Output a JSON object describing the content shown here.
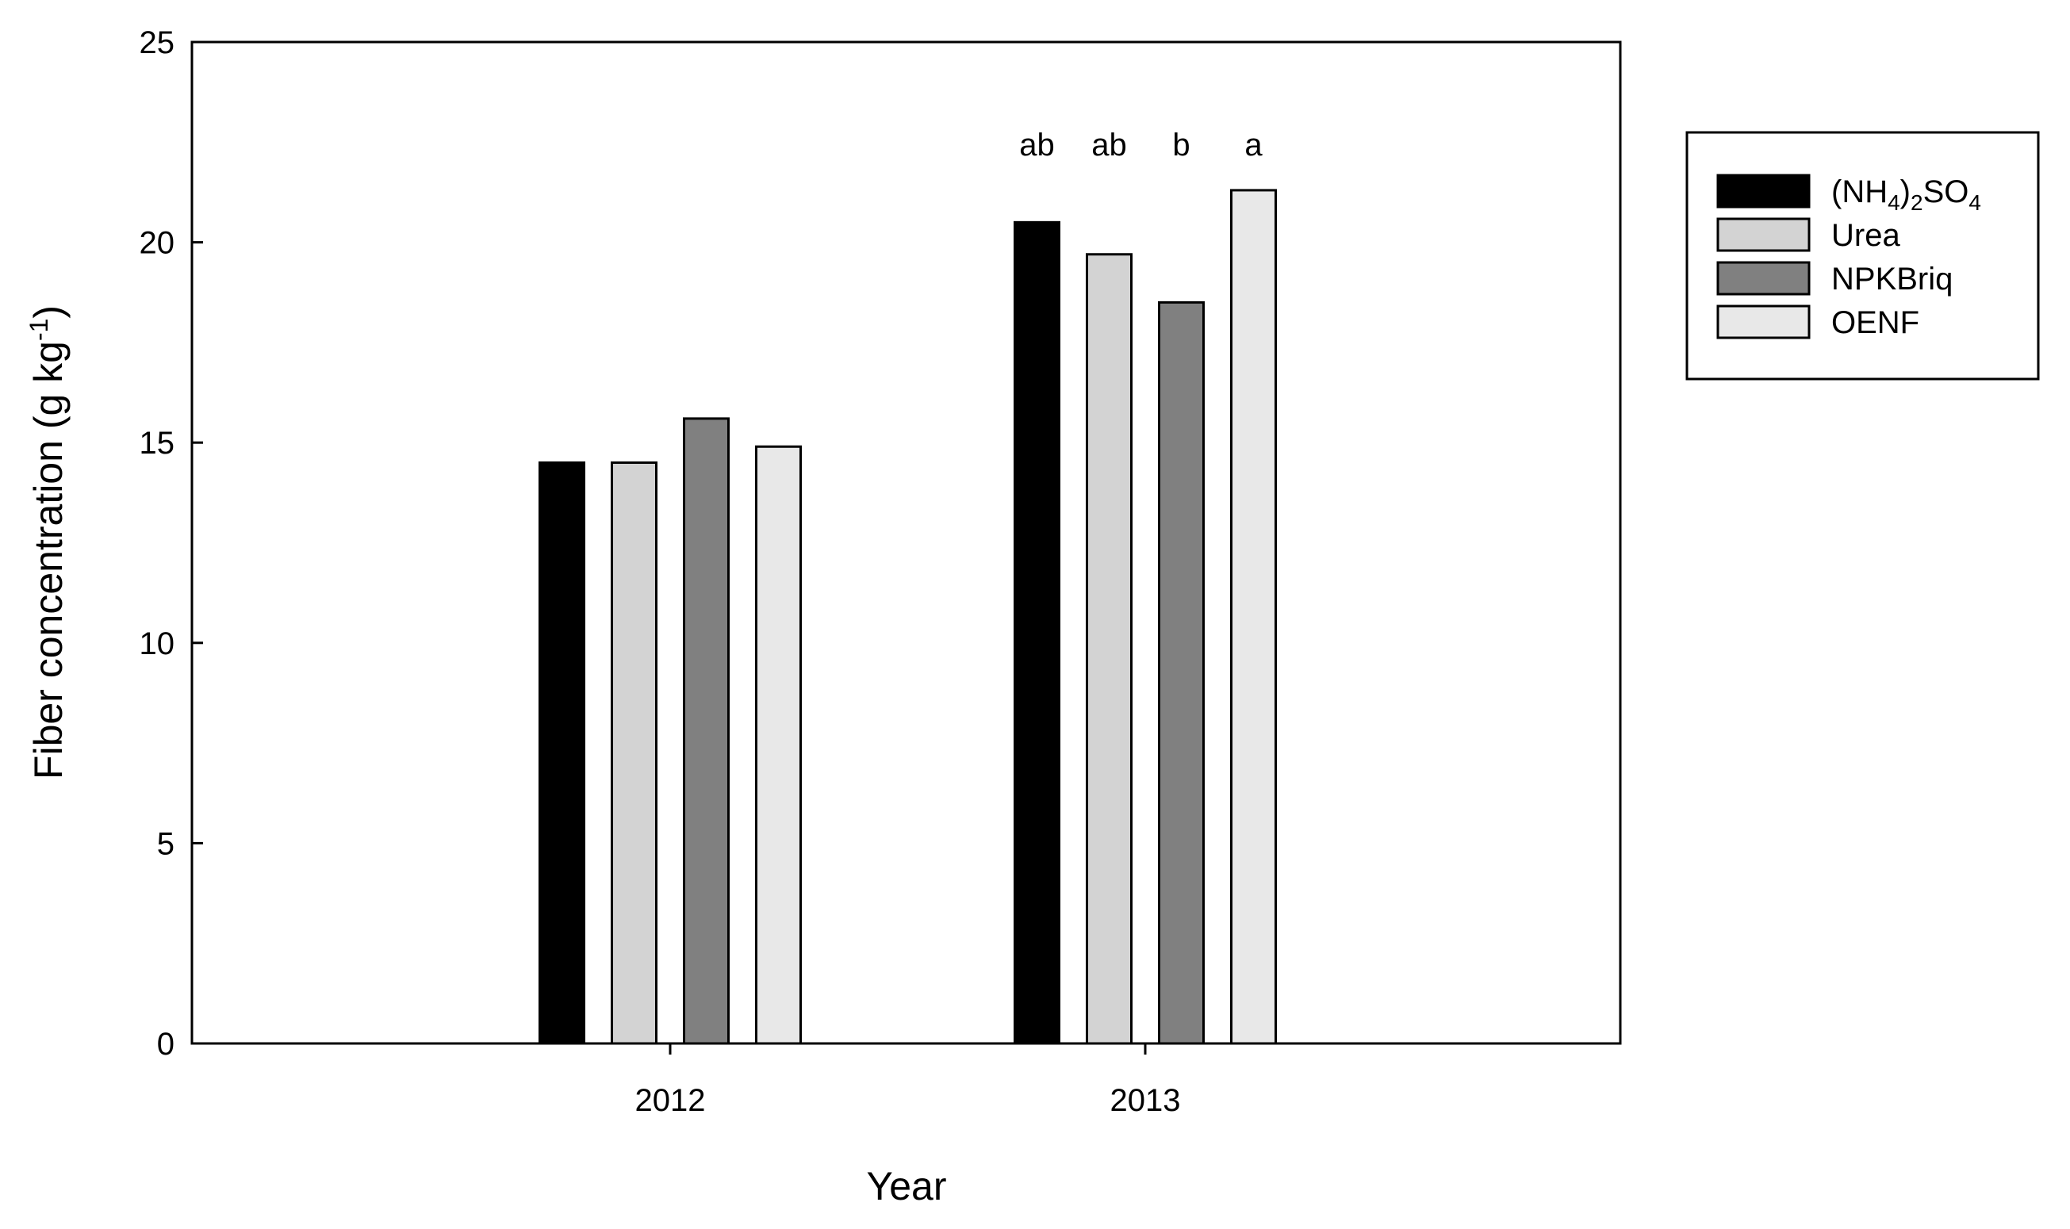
{
  "chart_data": {
    "type": "bar",
    "categories": [
      "2012",
      "2013"
    ],
    "series": [
      {
        "name": "(NH4)2SO4",
        "color": "#000000",
        "values": [
          14.5,
          20.5
        ]
      },
      {
        "name": "Urea",
        "color": "#d3d3d3",
        "values": [
          14.5,
          19.7
        ]
      },
      {
        "name": "NPKBriq",
        "color": "#808080",
        "values": [
          15.6,
          18.5
        ]
      },
      {
        "name": "OENF",
        "color": "#e8e8e8",
        "values": [
          14.9,
          21.3
        ]
      }
    ],
    "letters": [
      [
        "",
        "",
        "",
        ""
      ],
      [
        "ab",
        "ab",
        "b",
        "a"
      ]
    ],
    "xlabel": "Year",
    "ylabel": "Fiber concentration (g kg-1)",
    "ylim": [
      0,
      25
    ],
    "yticks": [
      0,
      5,
      10,
      15,
      20,
      25
    ],
    "grid": false,
    "legend_position": "right"
  }
}
